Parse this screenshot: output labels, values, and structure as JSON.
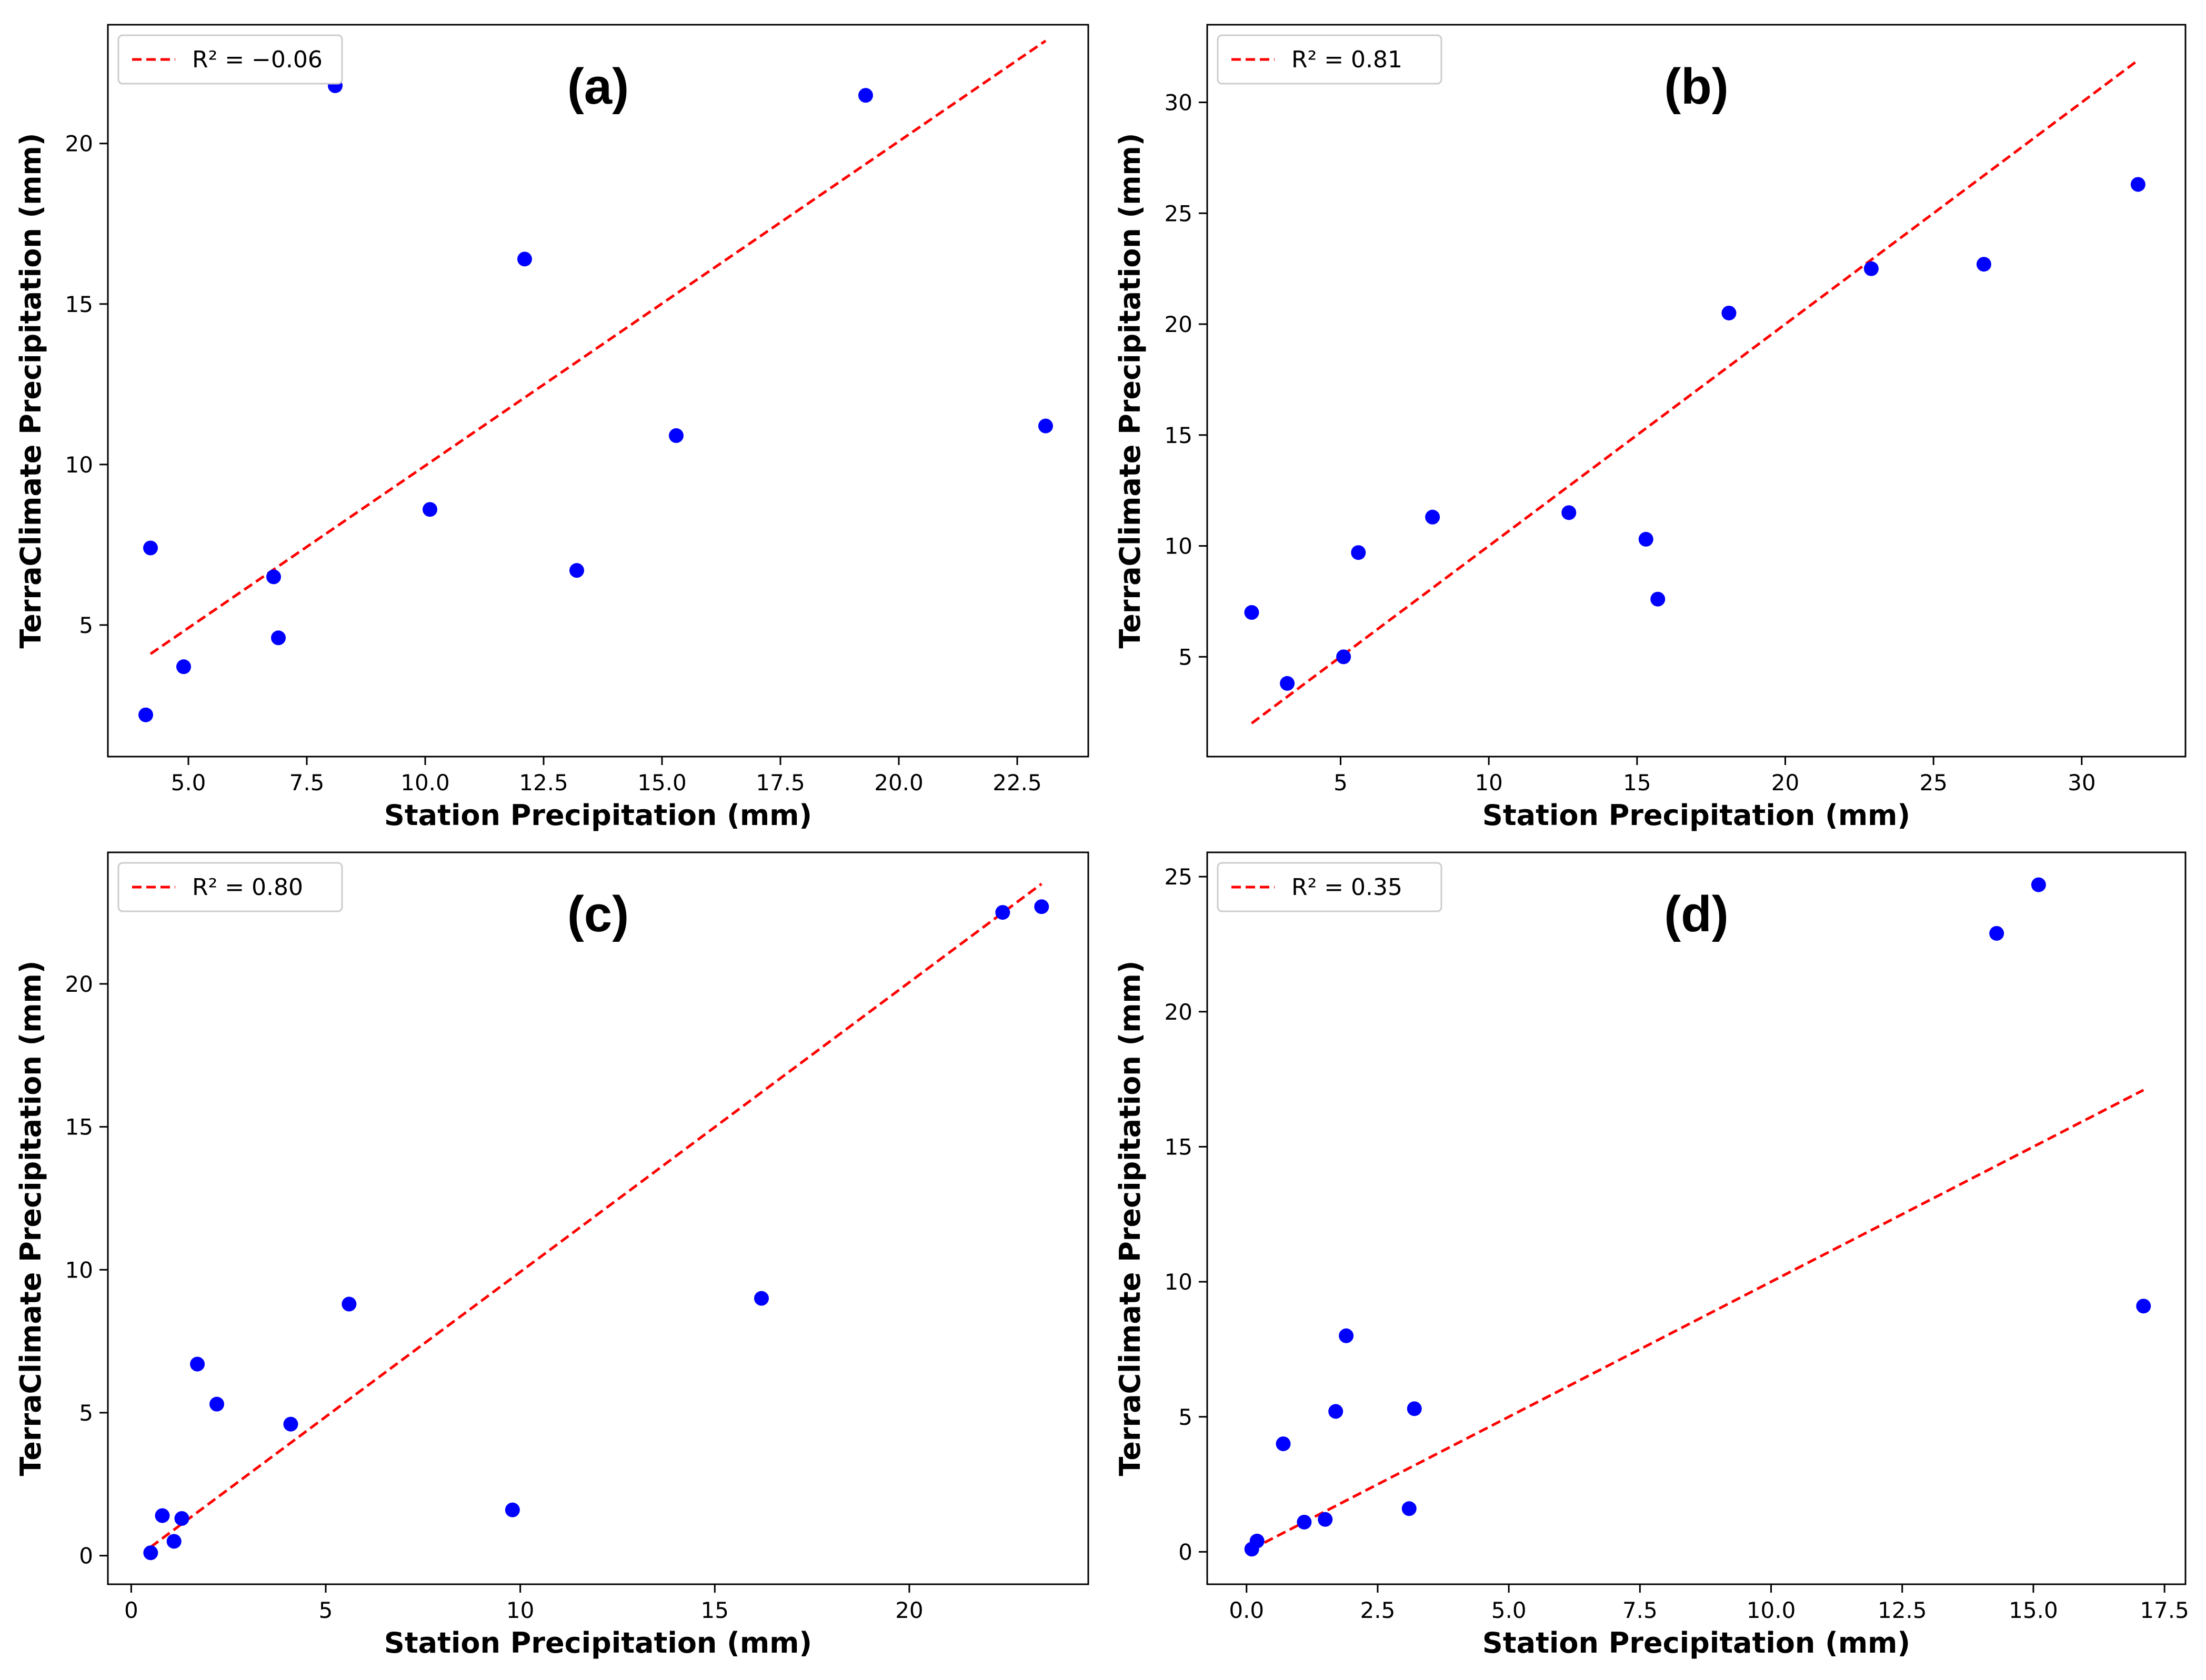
{
  "colors": {
    "points": "#0000ff",
    "fit_line": "#ff0000",
    "axes": "#000000",
    "legend_border": "#cccccc"
  },
  "chart_data": [
    {
      "id": "a",
      "type": "scatter",
      "panel_label": "(a)",
      "xlabel": "Station Precipitation (mm)",
      "ylabel": "TerraClimate Precipitation (mm)",
      "xlim": [
        3.3,
        24.0
      ],
      "ylim": [
        0.9,
        23.7
      ],
      "xticks": [
        5.0,
        7.5,
        10.0,
        12.5,
        15.0,
        17.5,
        20.0,
        22.5
      ],
      "xtick_labels": [
        "5.0",
        "7.5",
        "10.0",
        "12.5",
        "15.0",
        "17.5",
        "20.0",
        "22.5"
      ],
      "yticks": [
        5,
        10,
        15,
        20
      ],
      "ytick_labels": [
        "5",
        "10",
        "15",
        "20"
      ],
      "legend_label": "R² = −0.06",
      "legend_position": "top-left",
      "fit_line": {
        "x": [
          4.2,
          23.1
        ],
        "y": [
          4.1,
          23.2
        ]
      },
      "points": {
        "x": [
          4.1,
          4.2,
          4.9,
          6.8,
          6.9,
          8.1,
          10.1,
          12.1,
          13.2,
          15.3,
          19.3,
          23.1
        ],
        "y": [
          2.2,
          7.4,
          3.7,
          6.5,
          4.6,
          21.8,
          8.6,
          16.4,
          6.7,
          10.9,
          21.5,
          11.2
        ]
      }
    },
    {
      "id": "b",
      "type": "scatter",
      "panel_label": "(b)",
      "xlabel": "Station Precipitation (mm)",
      "ylabel": "TerraClimate Precipitation (mm)",
      "xlim": [
        0.5,
        33.5
      ],
      "ylim": [
        0.5,
        33.5
      ],
      "xticks": [
        5,
        10,
        15,
        20,
        25,
        30
      ],
      "xtick_labels": [
        "5",
        "10",
        "15",
        "20",
        "25",
        "30"
      ],
      "yticks": [
        5,
        10,
        15,
        20,
        25,
        30
      ],
      "ytick_labels": [
        "5",
        "10",
        "15",
        "20",
        "25",
        "30"
      ],
      "legend_label": "R² = 0.81",
      "legend_position": "top-left",
      "fit_line": {
        "x": [
          2.0,
          31.9
        ],
        "y": [
          2.0,
          31.9
        ]
      },
      "points": {
        "x": [
          2.0,
          3.2,
          5.1,
          5.6,
          8.1,
          12.7,
          15.3,
          15.7,
          18.1,
          22.9,
          26.7,
          31.9
        ],
        "y": [
          7.0,
          3.8,
          5.0,
          9.7,
          11.3,
          11.5,
          10.3,
          7.6,
          20.5,
          22.5,
          22.7,
          26.3
        ]
      }
    },
    {
      "id": "c",
      "type": "scatter",
      "panel_label": "(c)",
      "xlabel": "Station Precipitation (mm)",
      "ylabel": "TerraClimate Precipitation (mm)",
      "xlim": [
        -0.6,
        24.6
      ],
      "ylim": [
        -1.0,
        24.6
      ],
      "xticks": [
        0,
        5,
        10,
        15,
        20
      ],
      "xtick_labels": [
        "0",
        "5",
        "10",
        "15",
        "20"
      ],
      "yticks": [
        0,
        5,
        10,
        15,
        20
      ],
      "ytick_labels": [
        "0",
        "5",
        "10",
        "15",
        "20"
      ],
      "legend_label": "R² = 0.80",
      "legend_position": "top-left",
      "fit_line": {
        "x": [
          0.5,
          23.4
        ],
        "y": [
          0.3,
          23.5
        ]
      },
      "points": {
        "x": [
          0.5,
          0.8,
          1.1,
          1.3,
          1.7,
          2.2,
          4.1,
          5.6,
          9.8,
          16.2,
          22.4,
          23.4
        ],
        "y": [
          0.1,
          1.4,
          0.5,
          1.3,
          6.7,
          5.3,
          4.6,
          8.8,
          1.6,
          9.0,
          22.5,
          22.7
        ]
      }
    },
    {
      "id": "d",
      "type": "scatter",
      "panel_label": "(d)",
      "xlabel": "Station Precipitation (mm)",
      "ylabel": "TerraClimate Precipitation (mm)",
      "xlim": [
        -0.75,
        17.9
      ],
      "ylim": [
        -1.2,
        25.9
      ],
      "xticks": [
        0.0,
        2.5,
        5.0,
        7.5,
        10.0,
        12.5,
        15.0,
        17.5
      ],
      "xtick_labels": [
        "0.0",
        "2.5",
        "5.0",
        "7.5",
        "10.0",
        "12.5",
        "15.0",
        "17.5"
      ],
      "yticks": [
        0,
        5,
        10,
        15,
        20,
        25
      ],
      "ytick_labels": [
        "0",
        "5",
        "10",
        "15",
        "20",
        "25"
      ],
      "legend_label": "R² = 0.35",
      "legend_position": "top-left",
      "fit_line": {
        "x": [
          0.1,
          17.1
        ],
        "y": [
          0.1,
          17.1
        ]
      },
      "points": {
        "x": [
          0.1,
          0.2,
          0.7,
          1.1,
          1.5,
          1.7,
          1.9,
          3.1,
          3.2,
          14.3,
          15.1,
          17.1
        ],
        "y": [
          0.1,
          0.4,
          4.0,
          1.1,
          1.2,
          5.2,
          8.0,
          1.6,
          5.3,
          22.9,
          24.7,
          9.1
        ]
      }
    }
  ]
}
